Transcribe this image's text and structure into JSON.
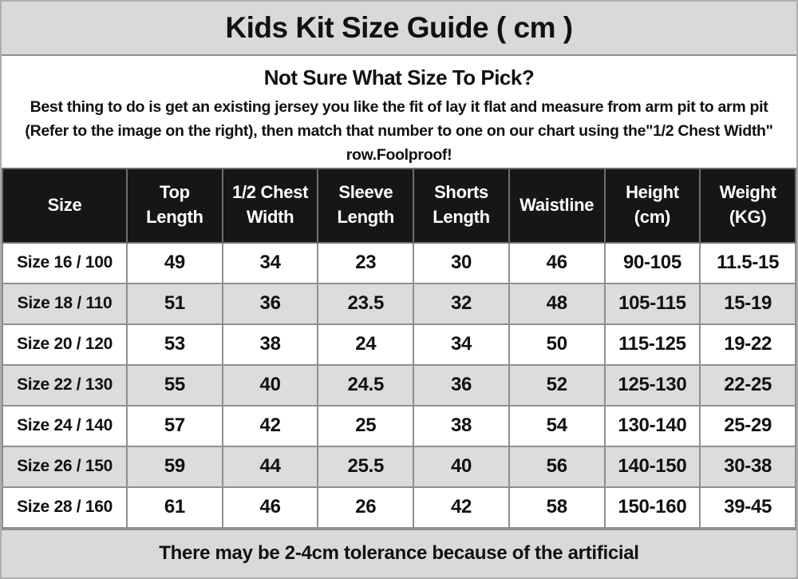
{
  "title": "Kids Kit Size Guide ( cm )",
  "intro": {
    "heading": "Not Sure What Size To Pick?",
    "body": "Best thing to do is get an existing jersey you like the fit of lay it flat and measure from arm pit to arm pit (Refer to the image on the right), then match that number to one on our chart using the\"1/2 Chest Width\" row.Foolproof!"
  },
  "table": {
    "columns": [
      "Size",
      "Top Length",
      "1/2 Chest Width",
      "Sleeve Length",
      "Shorts Length",
      "Waistline",
      "Height (cm)",
      "Weight (KG)"
    ],
    "rows": [
      [
        "Size 16 / 100",
        "49",
        "34",
        "23",
        "30",
        "46",
        "90-105",
        "11.5-15"
      ],
      [
        "Size 18 / 110",
        "51",
        "36",
        "23.5",
        "32",
        "48",
        "105-115",
        "15-19"
      ],
      [
        "Size 20 / 120",
        "53",
        "38",
        "24",
        "34",
        "50",
        "115-125",
        "19-22"
      ],
      [
        "Size 22 / 130",
        "55",
        "40",
        "24.5",
        "36",
        "52",
        "125-130",
        "22-25"
      ],
      [
        "Size 24 / 140",
        "57",
        "42",
        "25",
        "38",
        "54",
        "130-140",
        "25-29"
      ],
      [
        "Size 26 / 150",
        "59",
        "44",
        "25.5",
        "40",
        "56",
        "140-150",
        "30-38"
      ],
      [
        "Size 28 / 160",
        "61",
        "46",
        "26",
        "42",
        "58",
        "150-160",
        "39-45"
      ]
    ]
  },
  "footer": {
    "note": "There may be 2-4cm tolerance because of the artificial"
  },
  "colors": {
    "page_border": "#adadad",
    "bar_bg": "#d9d9d9",
    "head_bg": "#161616",
    "head_text": "#ffffff",
    "head_border": "#6e6e6e",
    "alt_row_bg": "#dcdcdc",
    "border": "#8f8f8f",
    "text": "#111111"
  }
}
